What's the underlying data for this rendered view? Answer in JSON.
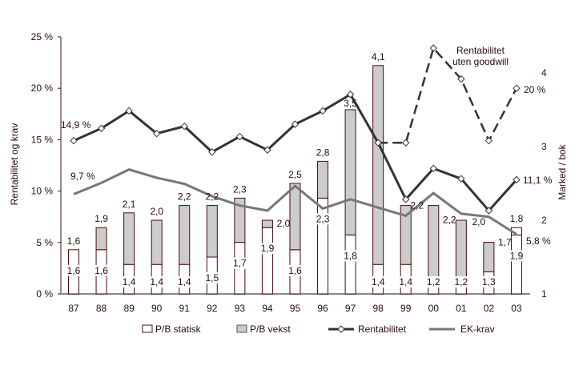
{
  "chart_data": {
    "type": "bar+line",
    "categories": [
      "87",
      "88",
      "89",
      "90",
      "91",
      "92",
      "93",
      "94",
      "95",
      "96",
      "97",
      "98",
      "99",
      "00",
      "01",
      "02",
      "03"
    ],
    "left_axis": {
      "label": "Rentabilitet og krav",
      "range": [
        0,
        25
      ],
      "ticks": [
        "0 %",
        "5 %",
        "10 %",
        "15 %",
        "20 %",
        "25 %"
      ],
      "tick_values": [
        0,
        5,
        10,
        15,
        20,
        25
      ]
    },
    "right_axis": {
      "label": "Marked / bok",
      "range": [
        1,
        4.5
      ],
      "ticks": [
        "1",
        "2",
        "3",
        "4"
      ],
      "tick_values": [
        1,
        2,
        3,
        4
      ]
    },
    "bars": {
      "pb_total": [
        1.6,
        1.9,
        2.1,
        2.0,
        2.2,
        2.2,
        2.3,
        2.0,
        2.5,
        2.8,
        3.5,
        4.1,
        2.2,
        2.2,
        2.0,
        1.7,
        1.8
      ],
      "pb_statisk": [
        1.6,
        1.6,
        1.4,
        1.4,
        1.4,
        1.5,
        1.7,
        1.9,
        1.6,
        2.3,
        1.8,
        1.4,
        1.4,
        1.2,
        1.2,
        1.3,
        1.9
      ],
      "top_labels": [
        "1,6",
        "1,9",
        "2,1",
        "2,0",
        "2,2",
        "2,2",
        "2,3",
        "2,0",
        "2,5",
        "2,8",
        "3,5",
        "4,1",
        "2,2",
        "2,2",
        "2,0",
        "1,7",
        "1,8"
      ],
      "bottom_labels": [
        "1,6",
        "1,6",
        "1,4",
        "1,4",
        "1,4",
        "1,5",
        "1,7",
        "1,9",
        "1,6",
        "2,3",
        "1,8",
        "1,4",
        "1,4",
        "1,2",
        "1,2",
        "1,3",
        "1,9"
      ]
    },
    "series": [
      {
        "name": "Rentabilitet",
        "axis": "left",
        "values": [
          14.9,
          16.1,
          17.8,
          15.6,
          16.3,
          13.8,
          15.3,
          14.0,
          16.5,
          17.8,
          19.4,
          14.7,
          9.2,
          12.2,
          11.2,
          8.1,
          11.1
        ]
      },
      {
        "name": "EK-krav",
        "axis": "left",
        "values": [
          9.7,
          10.8,
          12.1,
          11.3,
          10.7,
          9.5,
          8.6,
          8.1,
          10.5,
          8.3,
          9.2,
          8.4,
          7.6,
          9.8,
          7.8,
          7.5,
          5.8
        ]
      },
      {
        "name": "Rentabilitet uten goodwill",
        "axis": "left",
        "style": "dashed",
        "values": [
          null,
          null,
          null,
          null,
          null,
          null,
          null,
          null,
          null,
          null,
          null,
          14.7,
          14.7,
          23.9,
          20.9,
          14.9,
          20.0
        ]
      }
    ],
    "annotations": {
      "rent_start": "14,9 %",
      "ek_start": "9,7 %",
      "goodwill_end": "20 %",
      "rent_end": "11,1 %",
      "ek_end": "5,8 %",
      "goodwill_label_1": "Rentabilitet",
      "goodwill_label_2": "uten goodwill"
    },
    "legend": {
      "position": "bottom",
      "items": [
        "P/B statisk",
        "P/B vekst",
        "Rentabilitet",
        "EK-krav"
      ]
    },
    "colors": {
      "bar_border": "#4a0a0a",
      "vekst_fill": "#cccccc",
      "statisk_fill": "#ffffff",
      "rentabilitet": "#333333",
      "ek_krav": "#777777",
      "axis": "#3a1010"
    },
    "grid": false
  }
}
